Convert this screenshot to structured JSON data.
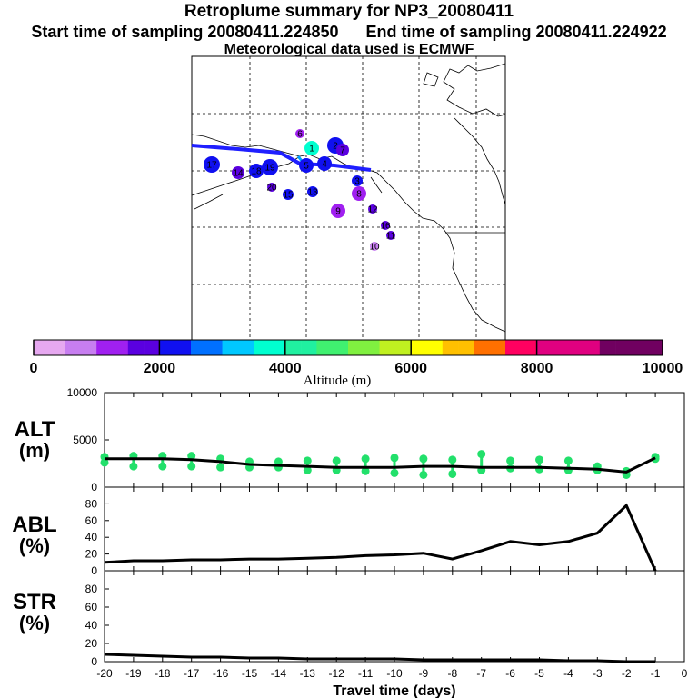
{
  "header": {
    "title": "Retroplume summary for NP3_20080411",
    "start_label": "Start time of sampling 20080411.224850",
    "end_label": "End time of sampling 20080411.224922",
    "met_label": "Meteorological data used is ECMWF"
  },
  "colorbar": {
    "ticks": [
      "0",
      "2000",
      "4000",
      "6000",
      "8000",
      "10000"
    ],
    "label": "Altitude (m)"
  },
  "colors": {
    "trajectory": "#1f1fff",
    "scatter": "#22e06b",
    "line": "#000000"
  },
  "map": {
    "cluster_labels": [
      "1",
      "2",
      "3",
      "4",
      "5",
      "6",
      "7",
      "8",
      "9",
      "10",
      "11",
      "12",
      "13",
      "14",
      "15",
      "16",
      "17",
      "18",
      "19",
      "20"
    ],
    "clusters": [
      {
        "label": "1",
        "altitude_m": 3600
      },
      {
        "label": "2",
        "altitude_m": 2400
      },
      {
        "label": "3",
        "altitude_m": 2200
      },
      {
        "label": "4",
        "altitude_m": 2400
      },
      {
        "label": "5",
        "altitude_m": 2200
      },
      {
        "label": "6",
        "altitude_m": 1500
      },
      {
        "label": "7",
        "altitude_m": 1800
      },
      {
        "label": "8",
        "altitude_m": 1500
      },
      {
        "label": "9",
        "altitude_m": 1200
      },
      {
        "label": "10",
        "altitude_m": 1000
      },
      {
        "label": "11",
        "altitude_m": 1600
      },
      {
        "label": "12",
        "altitude_m": 1900
      },
      {
        "label": "13",
        "altitude_m": 2100
      },
      {
        "label": "14",
        "altitude_m": 2000
      },
      {
        "label": "15",
        "altitude_m": 2200
      },
      {
        "label": "16",
        "altitude_m": 1800
      },
      {
        "label": "17",
        "altitude_m": 2300
      },
      {
        "label": "18",
        "altitude_m": 2400
      },
      {
        "label": "19",
        "altitude_m": 2300
      },
      {
        "label": "20",
        "altitude_m": 1700
      }
    ]
  },
  "chart_data": [
    {
      "type": "scatter",
      "panel": "ALT",
      "ylabel_line1": "ALT",
      "ylabel_line2": "(m)",
      "ylim": [
        0,
        10000
      ],
      "yticks": [
        "0",
        "5000",
        "10000"
      ],
      "xlim": [
        -20,
        0
      ],
      "x": [
        -20,
        -19,
        -18,
        -17,
        -16,
        -15,
        -14,
        -13,
        -12,
        -11,
        -10,
        -9,
        -8,
        -7,
        -6,
        -5,
        -4,
        -3,
        -2,
        -1
      ],
      "line_values": [
        3000,
        3000,
        3000,
        2900,
        2700,
        2400,
        2300,
        2200,
        2100,
        2100,
        2100,
        2200,
        2200,
        2100,
        2100,
        2100,
        2000,
        1900,
        1600,
        3100
      ],
      "scatter_series": [
        {
          "name": "high",
          "values": [
            3200,
            3300,
            3300,
            3300,
            3000,
            2700,
            2700,
            2800,
            2800,
            3000,
            3100,
            3000,
            2900,
            3500,
            2800,
            2900,
            2800,
            2200,
            1700,
            3200
          ]
        },
        {
          "name": "low",
          "values": [
            2600,
            2200,
            2200,
            2200,
            2100,
            2100,
            2100,
            1800,
            1800,
            1700,
            1500,
            1300,
            1400,
            1800,
            2000,
            1900,
            1800,
            1800,
            1300,
            3000
          ]
        }
      ]
    },
    {
      "type": "line",
      "panel": "ABL",
      "ylabel_line1": "ABL",
      "ylabel_line2": "(%)",
      "ylim": [
        0,
        100
      ],
      "yticks": [
        "0",
        "20",
        "40",
        "60",
        "80"
      ],
      "x": [
        -20,
        -19,
        -18,
        -17,
        -16,
        -15,
        -14,
        -13,
        -12,
        -11,
        -10,
        -9,
        -8,
        -7,
        -6,
        -5,
        -4,
        -3,
        -2,
        -1
      ],
      "values": [
        10,
        12,
        12,
        13,
        13,
        14,
        14,
        15,
        16,
        18,
        19,
        21,
        14,
        24,
        35,
        31,
        35,
        45,
        78,
        0
      ]
    },
    {
      "type": "line",
      "panel": "STR",
      "ylabel_line1": "STR",
      "ylabel_line2": "(%)",
      "ylim": [
        0,
        100
      ],
      "yticks": [
        "0",
        "20",
        "40",
        "60",
        "80"
      ],
      "x": [
        -20,
        -19,
        -18,
        -17,
        -16,
        -15,
        -14,
        -13,
        -12,
        -11,
        -10,
        -9,
        -8,
        -7,
        -6,
        -5,
        -4,
        -3,
        -2,
        -1
      ],
      "values": [
        8,
        7,
        6,
        5,
        5,
        4,
        4,
        3,
        3,
        3,
        3,
        2,
        2,
        2,
        2,
        2,
        1,
        1,
        0,
        0
      ]
    }
  ],
  "xaxis": {
    "title": "Travel time (days)",
    "ticks": [
      "-20",
      "-19",
      "-18",
      "-17",
      "-16",
      "-15",
      "-14",
      "-13",
      "-12",
      "-11",
      "-10",
      "-9",
      "-8",
      "-7",
      "-6",
      "-5",
      "-4",
      "-3",
      "-2",
      "-1",
      "0"
    ]
  }
}
